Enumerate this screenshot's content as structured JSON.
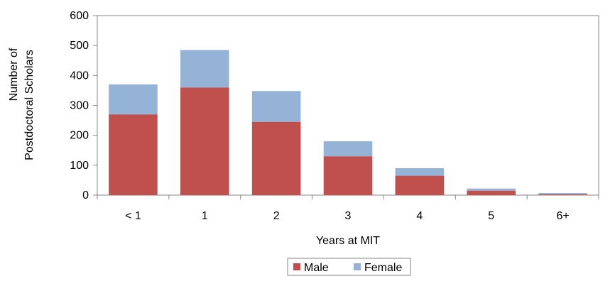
{
  "chart_data": {
    "type": "bar",
    "stacked": true,
    "title": "",
    "xlabel": "Years at MIT",
    "ylabel_lines": [
      "Number of",
      "Postdoctoral Scholars"
    ],
    "categories": [
      "< 1",
      "1",
      "2",
      "3",
      "4",
      "5",
      "6+"
    ],
    "series": [
      {
        "name": "Male",
        "color": "#c0504d",
        "values": [
          270,
          360,
          245,
          130,
          65,
          15,
          3
        ]
      },
      {
        "name": "Female",
        "color": "#95b3d7",
        "values": [
          100,
          125,
          103,
          50,
          25,
          7,
          4
        ]
      }
    ],
    "ylim": [
      0,
      600
    ],
    "yticks": [
      0,
      100,
      200,
      300,
      400,
      500,
      600
    ],
    "grid": false,
    "legend_position": "bottom"
  }
}
